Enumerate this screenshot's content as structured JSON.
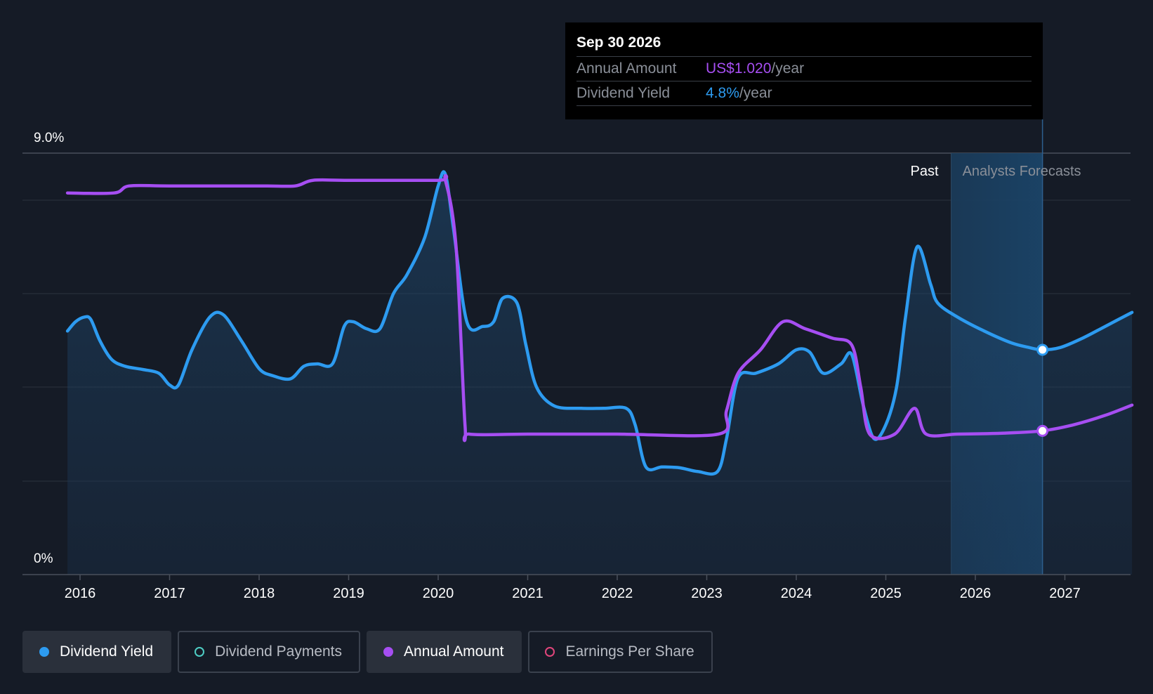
{
  "chart_data": {
    "type": "line",
    "y_axis": {
      "top_label": "9.0%",
      "bottom_label": "0%",
      "ylim": [
        0,
        9.0
      ]
    },
    "x_ticks": [
      "2016",
      "2017",
      "2018",
      "2019",
      "2020",
      "2021",
      "2022",
      "2023",
      "2024",
      "2025",
      "2026",
      "2027"
    ],
    "region_labels": {
      "past": "Past",
      "forecast": "Analysts Forecasts"
    },
    "forecast_start": 2025.73,
    "cursor_x": 2026.75,
    "series": [
      {
        "name": "Dividend Yield",
        "color": "#2d9bf0",
        "area": true,
        "points": [
          [
            2015.86,
            5.2
          ],
          [
            2015.95,
            5.4
          ],
          [
            2016.05,
            5.5
          ],
          [
            2016.12,
            5.45
          ],
          [
            2016.22,
            5.0
          ],
          [
            2016.35,
            4.6
          ],
          [
            2016.5,
            4.45
          ],
          [
            2016.7,
            4.38
          ],
          [
            2016.88,
            4.3
          ],
          [
            2017.0,
            4.05
          ],
          [
            2017.1,
            4.05
          ],
          [
            2017.25,
            4.8
          ],
          [
            2017.45,
            5.5
          ],
          [
            2017.6,
            5.55
          ],
          [
            2017.8,
            5.0
          ],
          [
            2018.0,
            4.4
          ],
          [
            2018.15,
            4.25
          ],
          [
            2018.35,
            4.18
          ],
          [
            2018.5,
            4.45
          ],
          [
            2018.65,
            4.5
          ],
          [
            2018.82,
            4.5
          ],
          [
            2018.95,
            5.3
          ],
          [
            2019.05,
            5.4
          ],
          [
            2019.2,
            5.25
          ],
          [
            2019.35,
            5.25
          ],
          [
            2019.5,
            6.0
          ],
          [
            2019.65,
            6.4
          ],
          [
            2019.85,
            7.2
          ],
          [
            2020.0,
            8.3
          ],
          [
            2020.08,
            8.55
          ],
          [
            2020.17,
            7.4
          ],
          [
            2020.32,
            5.4
          ],
          [
            2020.5,
            5.3
          ],
          [
            2020.62,
            5.4
          ],
          [
            2020.72,
            5.9
          ],
          [
            2020.88,
            5.8
          ],
          [
            2020.98,
            4.9
          ],
          [
            2021.1,
            4.0
          ],
          [
            2021.3,
            3.6
          ],
          [
            2021.6,
            3.55
          ],
          [
            2021.85,
            3.55
          ],
          [
            2022.1,
            3.55
          ],
          [
            2022.2,
            3.2
          ],
          [
            2022.32,
            2.3
          ],
          [
            2022.5,
            2.3
          ],
          [
            2022.7,
            2.28
          ],
          [
            2022.9,
            2.2
          ],
          [
            2023.12,
            2.2
          ],
          [
            2023.22,
            2.9
          ],
          [
            2023.35,
            4.2
          ],
          [
            2023.55,
            4.3
          ],
          [
            2023.8,
            4.5
          ],
          [
            2024.0,
            4.8
          ],
          [
            2024.15,
            4.75
          ],
          [
            2024.3,
            4.3
          ],
          [
            2024.5,
            4.5
          ],
          [
            2024.62,
            4.7
          ],
          [
            2024.75,
            3.6
          ],
          [
            2024.87,
            2.9
          ],
          [
            2025.0,
            3.2
          ],
          [
            2025.12,
            4.0
          ],
          [
            2025.22,
            5.5
          ],
          [
            2025.35,
            7.0
          ],
          [
            2025.5,
            6.2
          ],
          [
            2025.58,
            5.8
          ],
          [
            2025.8,
            5.5
          ],
          [
            2026.1,
            5.2
          ],
          [
            2026.4,
            4.95
          ],
          [
            2026.6,
            4.85
          ],
          [
            2026.75,
            4.8
          ],
          [
            2026.95,
            4.85
          ],
          [
            2027.2,
            5.05
          ],
          [
            2027.45,
            5.3
          ],
          [
            2027.75,
            5.6
          ]
        ]
      },
      {
        "name": "Annual Amount",
        "color": "#a64ef2",
        "area": false,
        "points": [
          [
            2015.86,
            8.15
          ],
          [
            2016.38,
            8.15
          ],
          [
            2016.55,
            8.3
          ],
          [
            2017.0,
            8.3
          ],
          [
            2018.0,
            8.3
          ],
          [
            2018.4,
            8.3
          ],
          [
            2018.6,
            8.42
          ],
          [
            2019.0,
            8.42
          ],
          [
            2020.0,
            8.42
          ],
          [
            2020.08,
            8.42
          ],
          [
            2020.2,
            7.0
          ],
          [
            2020.3,
            3.2
          ],
          [
            2020.35,
            3.0
          ],
          [
            2021.0,
            3.0
          ],
          [
            2022.0,
            3.0
          ],
          [
            2023.13,
            3.0
          ],
          [
            2023.22,
            3.5
          ],
          [
            2023.35,
            4.3
          ],
          [
            2023.6,
            4.8
          ],
          [
            2023.85,
            5.4
          ],
          [
            2024.1,
            5.25
          ],
          [
            2024.4,
            5.05
          ],
          [
            2024.62,
            4.9
          ],
          [
            2024.72,
            4.0
          ],
          [
            2024.82,
            3.0
          ],
          [
            2025.1,
            3.0
          ],
          [
            2025.32,
            3.55
          ],
          [
            2025.45,
            3.0
          ],
          [
            2025.8,
            3.0
          ],
          [
            2026.3,
            3.02
          ],
          [
            2026.75,
            3.07
          ],
          [
            2027.1,
            3.2
          ],
          [
            2027.45,
            3.4
          ],
          [
            2027.75,
            3.62
          ]
        ]
      }
    ]
  },
  "tooltip": {
    "date": "Sep 30 2026",
    "rows": [
      {
        "label": "Annual Amount",
        "value": "US$1.020",
        "unit": "/year",
        "color": "#a64ef2"
      },
      {
        "label": "Dividend Yield",
        "value": "4.8%",
        "unit": "/year",
        "color": "#2d9bf0"
      }
    ]
  },
  "legend": [
    {
      "label": "Dividend Yield",
      "active": true,
      "color": "#2d9bf0",
      "filled": true
    },
    {
      "label": "Dividend Payments",
      "active": false,
      "color": "#4ecdc4",
      "filled": false
    },
    {
      "label": "Annual Amount",
      "active": true,
      "color": "#a64ef2",
      "filled": true
    },
    {
      "label": "Earnings Per Share",
      "active": false,
      "color": "#e0457b",
      "filled": false
    }
  ]
}
